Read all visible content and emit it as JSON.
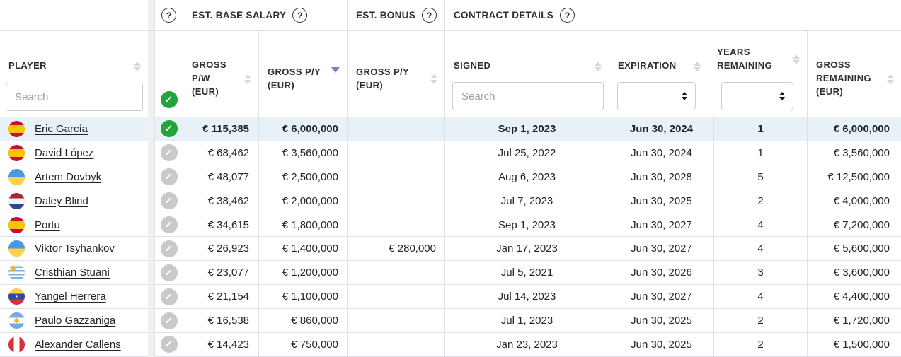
{
  "icons": {
    "help": "?",
    "check": "✓"
  },
  "groups": {
    "base_salary": "EST. BASE SALARY",
    "bonus": "EST. BONUS",
    "contract": "CONTRACT DETAILS"
  },
  "columns": {
    "player": "PLAYER",
    "gross_pw": "GROSS P/W (EUR)",
    "gross_py": "GROSS P/Y (EUR)",
    "bonus_py": "GROSS P/Y (EUR)",
    "signed": "SIGNED",
    "expiration": "EXPIRATION",
    "years_remaining": "YEARS REMAINING",
    "gross_remaining": "GROSS REMAINING (EUR)"
  },
  "search": {
    "player_placeholder": "Search",
    "signed_placeholder": "Search"
  },
  "sort": {
    "active_column": "gross_py",
    "direction": "desc"
  },
  "colors": {
    "accent_green": "#23a33c",
    "inactive_gray": "#c9c9c9",
    "row_highlight": "#e9f1f8",
    "sort_active": "#7b7fe0"
  },
  "rows": [
    {
      "player": "Eric García",
      "country": "spain",
      "selected": true,
      "gross_pw": "€ 115,385",
      "gross_py": "€ 6,000,000",
      "bonus_py": "",
      "signed": "Sep 1, 2023",
      "expiration": "Jun 30, 2024",
      "years_remaining": "1",
      "gross_remaining": "€ 6,000,000"
    },
    {
      "player": "David López",
      "country": "spain",
      "selected": false,
      "gross_pw": "€ 68,462",
      "gross_py": "€ 3,560,000",
      "bonus_py": "",
      "signed": "Jul 25, 2022",
      "expiration": "Jun 30, 2024",
      "years_remaining": "1",
      "gross_remaining": "€ 3,560,000"
    },
    {
      "player": "Artem Dovbyk",
      "country": "ukraine",
      "selected": false,
      "gross_pw": "€ 48,077",
      "gross_py": "€ 2,500,000",
      "bonus_py": "",
      "signed": "Aug 6, 2023",
      "expiration": "Jun 30, 2028",
      "years_remaining": "5",
      "gross_remaining": "€ 12,500,000"
    },
    {
      "player": "Daley Blind",
      "country": "netherlands",
      "selected": false,
      "gross_pw": "€ 38,462",
      "gross_py": "€ 2,000,000",
      "bonus_py": "",
      "signed": "Jul 7, 2023",
      "expiration": "Jun 30, 2025",
      "years_remaining": "2",
      "gross_remaining": "€ 4,000,000"
    },
    {
      "player": "Portu",
      "country": "spain",
      "selected": false,
      "gross_pw": "€ 34,615",
      "gross_py": "€ 1,800,000",
      "bonus_py": "",
      "signed": "Sep 1, 2023",
      "expiration": "Jun 30, 2027",
      "years_remaining": "4",
      "gross_remaining": "€ 7,200,000"
    },
    {
      "player": "Viktor Tsyhankov",
      "country": "ukraine",
      "selected": false,
      "gross_pw": "€ 26,923",
      "gross_py": "€ 1,400,000",
      "bonus_py": "€ 280,000",
      "signed": "Jan 17, 2023",
      "expiration": "Jun 30, 2027",
      "years_remaining": "4",
      "gross_remaining": "€ 5,600,000"
    },
    {
      "player": "Cristhian Stuani",
      "country": "uruguay",
      "selected": false,
      "gross_pw": "€ 23,077",
      "gross_py": "€ 1,200,000",
      "bonus_py": "",
      "signed": "Jul 5, 2021",
      "expiration": "Jun 30, 2026",
      "years_remaining": "3",
      "gross_remaining": "€ 3,600,000"
    },
    {
      "player": "Yangel Herrera",
      "country": "venezuela",
      "selected": false,
      "gross_pw": "€ 21,154",
      "gross_py": "€ 1,100,000",
      "bonus_py": "",
      "signed": "Jul 14, 2023",
      "expiration": "Jun 30, 2027",
      "years_remaining": "4",
      "gross_remaining": "€ 4,400,000"
    },
    {
      "player": "Paulo Gazzaniga",
      "country": "argentina",
      "selected": false,
      "gross_pw": "€ 16,538",
      "gross_py": "€ 860,000",
      "bonus_py": "",
      "signed": "Jul 1, 2023",
      "expiration": "Jun 30, 2025",
      "years_remaining": "2",
      "gross_remaining": "€ 1,720,000"
    },
    {
      "player": "Alexander Callens",
      "country": "peru",
      "selected": false,
      "gross_pw": "€ 14,423",
      "gross_py": "€ 750,000",
      "bonus_py": "",
      "signed": "Jan 23, 2023",
      "expiration": "Jun 30, 2025",
      "years_remaining": "2",
      "gross_remaining": "€ 1,500,000"
    }
  ]
}
